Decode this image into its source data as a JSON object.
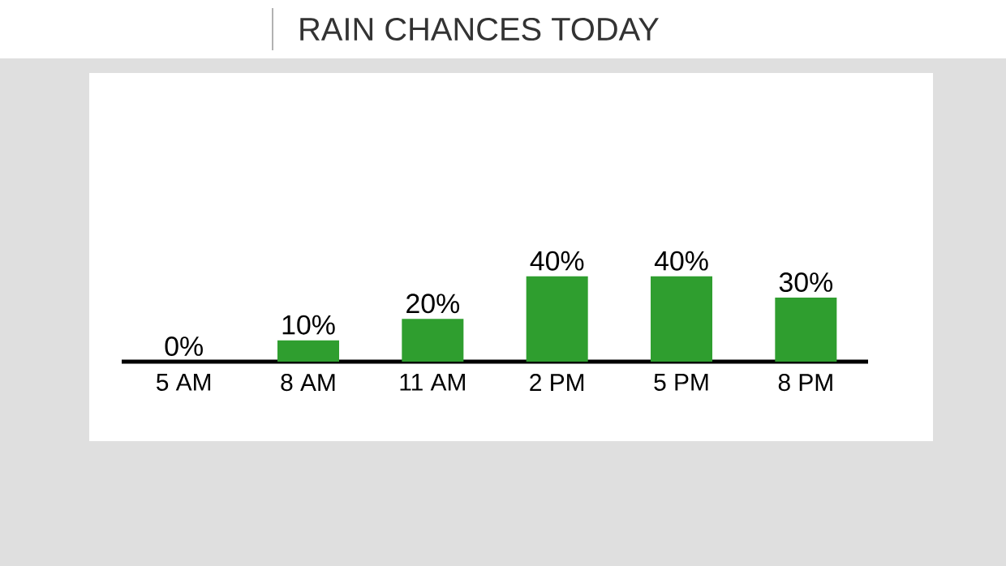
{
  "chart_data": {
    "type": "bar",
    "title": "RAIN CHANCES TODAY",
    "categories": [
      "5 AM",
      "8 AM",
      "11 AM",
      "2 PM",
      "5 PM",
      "8 PM"
    ],
    "values": [
      0,
      10,
      20,
      40,
      40,
      30
    ],
    "value_labels": [
      "0%",
      "10%",
      "20%",
      "40%",
      "40%",
      "30%"
    ],
    "color": "#2f9e2f"
  }
}
